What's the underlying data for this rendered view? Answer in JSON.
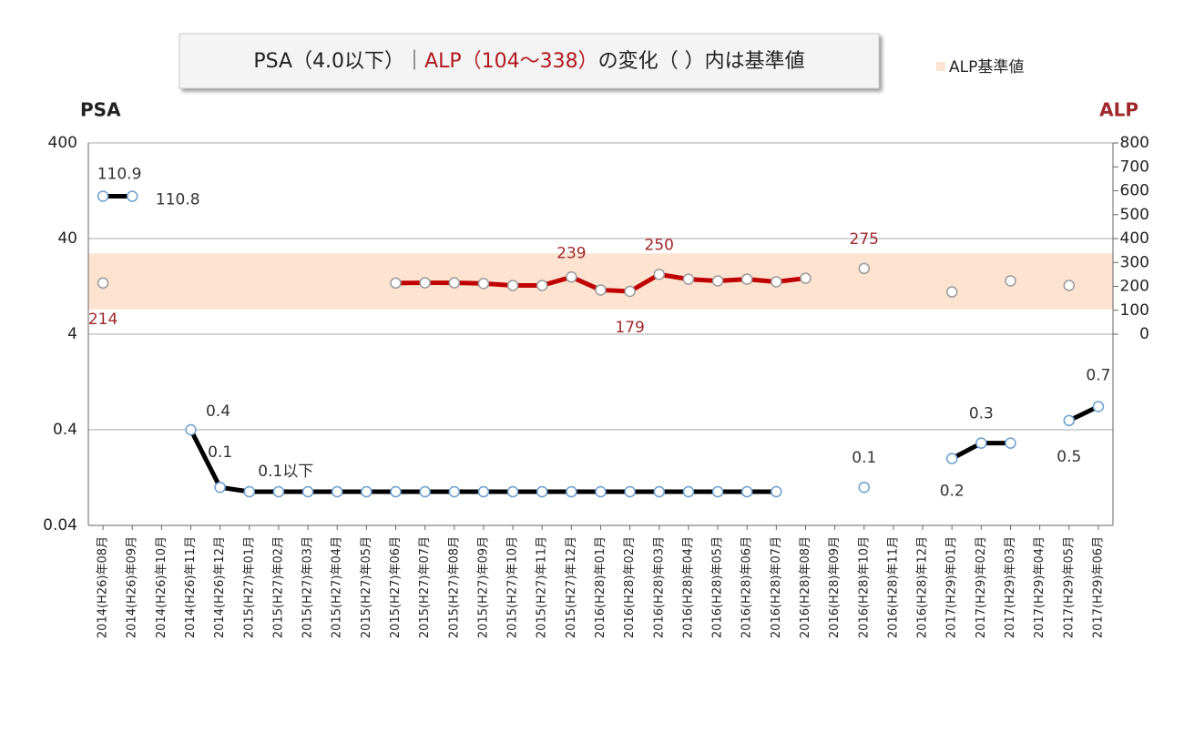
{
  "chart_data": {
    "type": "line",
    "title_parts": [
      {
        "text": "PSA（4.0以下）｜",
        "color": "#222222"
      },
      {
        "text": "ALP（104〜338）",
        "color": "#b2181f"
      },
      {
        "text": "の変化（ ）内は基準値",
        "color": "#222222"
      }
    ],
    "y_label": "PSA",
    "y2_label": "ALP",
    "categories": [
      "2014(H26)年08月",
      "2014(H26)年09月",
      "2014(H26)年10月",
      "2014(H26)年11月",
      "2014(H26)年12月",
      "2015(H27)年01月",
      "2015(H27)年02月",
      "2015(H27)年03月",
      "2015(H27)年04月",
      "2015(H27)年05月",
      "2015(H27)年06月",
      "2015(H27)年07月",
      "2015(H27)年08月",
      "2015(H27)年09月",
      "2015(H27)年10月",
      "2015(H27)年11月",
      "2015(H27)年12月",
      "2016(H28)年01月",
      "2016(H28)年02月",
      "2016(H28)年03月",
      "2016(H28)年04月",
      "2016(H28)年05月",
      "2016(H28)年06月",
      "2016(H28)年07月",
      "2016(H28)年08月",
      "2016(H28)年09月",
      "2016(H28)年10月",
      "2016(H28)年11月",
      "2016(H28)年12月",
      "2017(H29)年01月",
      "2017(H29)年02月",
      "2017(H29)年03月",
      "2017(H29)年04月",
      "2017(H29)年05月",
      "2017(H29)年06月"
    ],
    "ylim": [
      0.04,
      400
    ],
    "yscale": "log",
    "yticks": [
      0.04,
      0.4,
      4,
      40,
      400
    ],
    "grid": true,
    "y2lim": [
      -800,
      800
    ],
    "y2ticks": [
      0,
      100,
      200,
      300,
      400,
      500,
      600,
      700,
      800
    ],
    "band": {
      "name": "ALP基準値",
      "from": 104,
      "to": 338,
      "color": "#fde3d0",
      "axis": "y2"
    },
    "series": [
      {
        "name": "PSA",
        "color": "#000000",
        "marker_color": "#6a9fd0",
        "label_color": "#333333",
        "values": [
          110.9,
          110.8,
          null,
          0.4,
          0.1,
          0.09,
          0.09,
          0.09,
          0.09,
          0.09,
          0.09,
          0.09,
          0.09,
          0.09,
          0.09,
          0.09,
          0.09,
          0.09,
          0.09,
          0.09,
          0.09,
          0.09,
          0.09,
          0.09,
          null,
          null,
          0.1,
          null,
          null,
          0.2,
          0.29,
          0.29,
          null,
          0.5,
          0.7
        ],
        "value_labels": [
          "110.9",
          "110.8",
          null,
          "0.4",
          "0.1",
          "0.1以下",
          null,
          null,
          null,
          null,
          null,
          null,
          null,
          null,
          null,
          null,
          null,
          null,
          null,
          null,
          null,
          null,
          null,
          null,
          null,
          null,
          "0.1",
          null,
          null,
          "0.2",
          "0.3",
          null,
          null,
          "0.5",
          "0.7"
        ]
      },
      {
        "name": "ALP",
        "color": "#c00000",
        "marker_color": "#999999",
        "label_color": "#a0282d",
        "axis": "y2",
        "values": [
          214,
          null,
          null,
          null,
          null,
          null,
          null,
          null,
          null,
          null,
          214,
          215,
          215,
          212,
          204,
          204,
          239,
          185,
          179,
          250,
          230,
          223,
          230,
          219,
          234,
          null,
          275,
          null,
          null,
          177,
          null,
          223,
          null,
          204,
          null
        ],
        "value_labels": [
          "214",
          null,
          null,
          null,
          null,
          null,
          null,
          null,
          null,
          null,
          null,
          null,
          null,
          null,
          null,
          null,
          "239",
          null,
          "179",
          "250",
          null,
          null,
          null,
          null,
          null,
          null,
          "275",
          null,
          null,
          null,
          null,
          null,
          null,
          null,
          null
        ]
      }
    ]
  }
}
